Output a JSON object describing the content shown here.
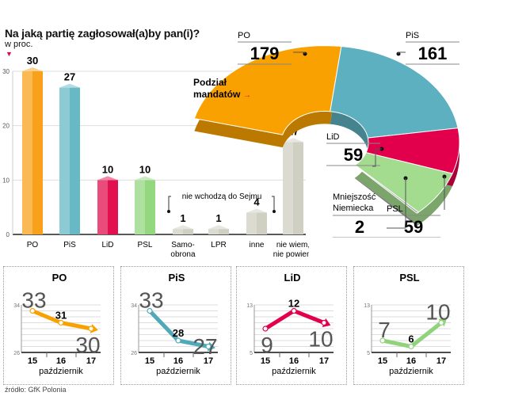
{
  "chart_data": [
    {
      "type": "bar",
      "title": "Na jaką partię zagłosował(a)by pan(i)?",
      "subtitle": "w proc.",
      "categories": [
        "PO",
        "PiS",
        "LiD",
        "PSL",
        "Samo-\nobrona",
        "LPR",
        "inne",
        "nie wiem,\nnie powiem"
      ],
      "values": [
        30,
        27,
        10,
        10,
        1,
        1,
        4,
        17
      ],
      "colors": [
        "#f9a11b",
        "#67b9c6",
        "#e2104f",
        "#93d77f",
        "#cfcfc2",
        "#cfcfc2",
        "#cfcfc2",
        "#cfcfc2"
      ],
      "yticks": [
        0,
        10,
        20,
        30
      ],
      "ylim": [
        0,
        30
      ],
      "grid": true,
      "annotation": "nie wchodzą do Sejmu"
    },
    {
      "type": "pie",
      "title": "Podział mandatów",
      "variant": "semicircle-3d",
      "labels": [
        "PO",
        "PiS",
        "LiD",
        "PSL",
        "Mniejszość Niemiecka"
      ],
      "values": [
        179,
        161,
        59,
        59,
        2
      ],
      "colors": [
        "#f9a100",
        "#5cb0bf",
        "#e2004c",
        "#a4dc8f",
        "#a0a0a0"
      ]
    },
    {
      "type": "line",
      "title": "PO",
      "x": [
        15,
        16,
        17
      ],
      "xlabel": "październik",
      "values": [
        33,
        31,
        30
      ],
      "ylim": [
        26,
        34
      ],
      "color": "#f9a100"
    },
    {
      "type": "line",
      "title": "PiS",
      "x": [
        15,
        16,
        17
      ],
      "xlabel": "październik",
      "values": [
        33,
        28,
        27
      ],
      "ylim": [
        26,
        34
      ],
      "color": "#4fa9b8"
    },
    {
      "type": "line",
      "title": "LiD",
      "x": [
        15,
        16,
        17
      ],
      "xlabel": "październik",
      "values": [
        9,
        12,
        10
      ],
      "ylim": [
        5,
        13
      ],
      "color": "#e2004c"
    },
    {
      "type": "line",
      "title": "PSL",
      "x": [
        15,
        16,
        17
      ],
      "xlabel": "październik",
      "values": [
        7,
        6,
        10
      ],
      "ylim": [
        5,
        13
      ],
      "color": "#8fd47a"
    }
  ],
  "header": {
    "title": "Na jaką partię zagłosował(a)by pan(i)?",
    "unit": "w proc."
  },
  "seats": {
    "label_line1": "Podział",
    "label_line2": "mandatów",
    "mn_line1": "Mniejszość",
    "mn_line2": "Niemiecka"
  },
  "footer": {
    "source": "źródło: GfK Polonia"
  }
}
